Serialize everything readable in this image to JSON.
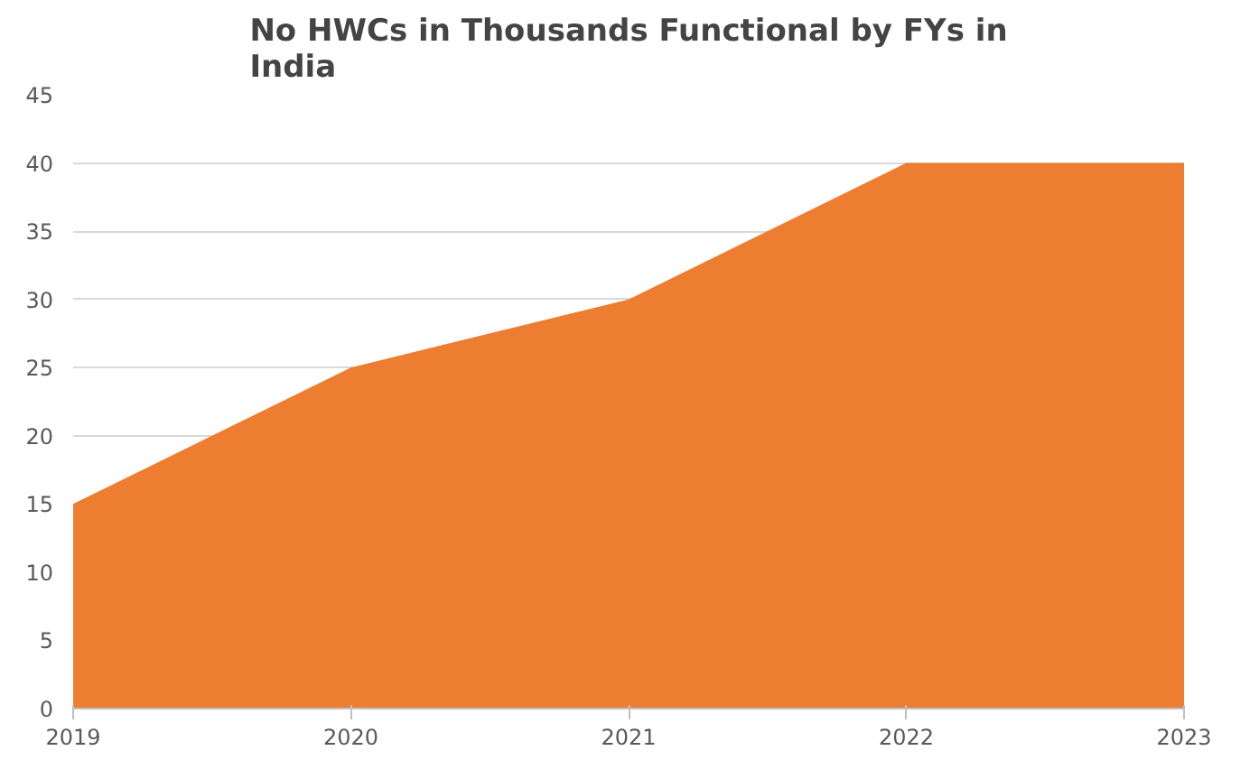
{
  "chart_data": {
    "type": "area",
    "title": "No HWCs in Thousands Functional by FYs in India",
    "categories": [
      "2019",
      "2020",
      "2021",
      "2022",
      "2023"
    ],
    "series": [
      {
        "color": "#ed7d31",
        "values": [
          15,
          25,
          30,
          40,
          40
        ]
      }
    ],
    "ylim": [
      0,
      45
    ],
    "yticks": [
      0,
      5,
      10,
      15,
      20,
      25,
      30,
      35,
      40,
      45
    ],
    "grid": "y"
  }
}
